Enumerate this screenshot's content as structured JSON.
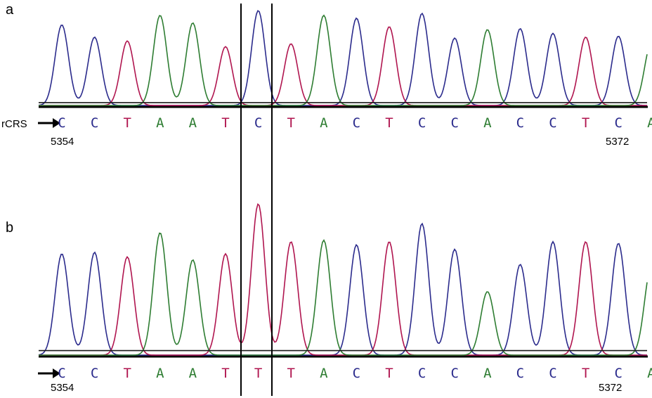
{
  "colors": {
    "A": "#2e7d32",
    "C": "#2b2b8c",
    "T": "#b0154f",
    "G": "#1a1a1a"
  },
  "panels": [
    {
      "letter": "a",
      "reference_label": "rCRS",
      "start_position": "5354",
      "end_position": "5372",
      "sequence": [
        "C",
        "C",
        "T",
        "A",
        "A",
        "T",
        "C",
        "T",
        "A",
        "C",
        "T",
        "C",
        "C",
        "A",
        "C",
        "C",
        "T",
        "C",
        "A"
      ],
      "peak_heights": [
        0.85,
        0.72,
        0.68,
        0.95,
        0.87,
        0.62,
        1.0,
        0.65,
        0.95,
        0.92,
        0.83,
        0.97,
        0.71,
        0.8,
        0.81,
        0.76,
        0.72,
        0.73,
        0.65
      ]
    },
    {
      "letter": "b",
      "start_position": "5354",
      "end_position": "5372",
      "sequence": [
        "C",
        "C",
        "T",
        "A",
        "A",
        "T",
        "T",
        "T",
        "A",
        "C",
        "T",
        "C",
        "C",
        "A",
        "C",
        "C",
        "T",
        "C",
        "A"
      ],
      "peak_heights": [
        0.67,
        0.68,
        0.65,
        0.81,
        0.63,
        0.67,
        1.0,
        0.75,
        0.76,
        0.73,
        0.75,
        0.87,
        0.7,
        0.42,
        0.6,
        0.75,
        0.75,
        0.74,
        0.58
      ]
    }
  ]
}
